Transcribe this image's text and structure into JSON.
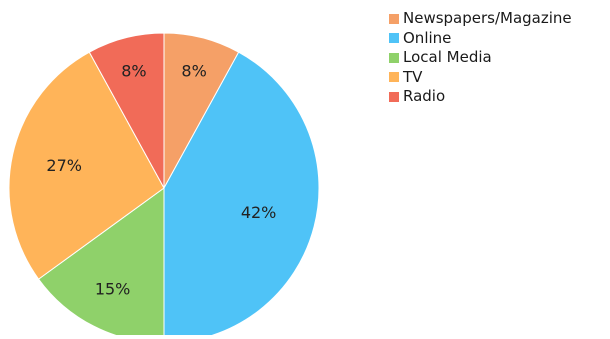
{
  "chart_data": {
    "type": "pie",
    "categories": [
      "Newspapers/Magazine",
      "Online",
      "Local Media",
      "TV",
      "Radio"
    ],
    "values": [
      8,
      42,
      15,
      27,
      8
    ],
    "labels": [
      "8%",
      "42%",
      "15%",
      "27%",
      "8%"
    ],
    "colors": [
      "#f5a067",
      "#4fc3f7",
      "#8fd16a",
      "#ffb459",
      "#f16b58"
    ],
    "legend_position": "top-right",
    "start_angle": "12 o'clock",
    "direction": "clockwise"
  }
}
